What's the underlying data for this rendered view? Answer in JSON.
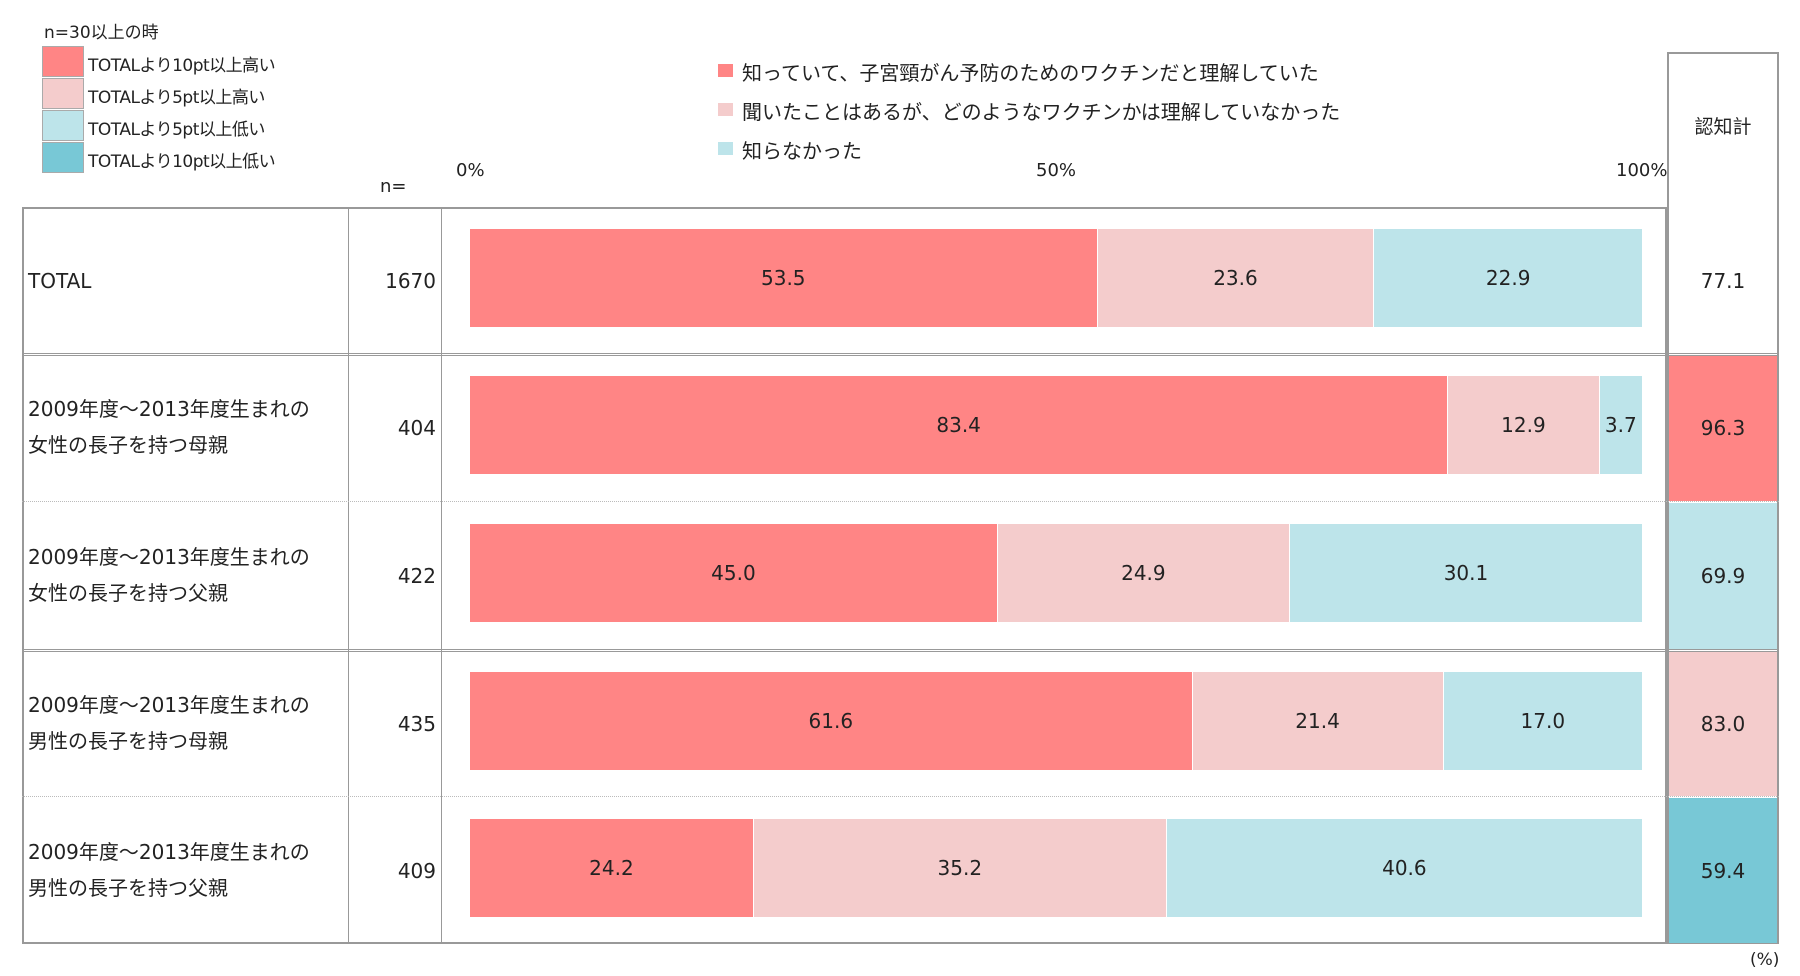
{
  "legend_highlight": {
    "title": "n=30以上の時",
    "items": [
      {
        "label": "TOTALより10pt以上高い",
        "color": "#ff8585"
      },
      {
        "label": "TOTALより5pt以上高い",
        "color": "#f4cccc"
      },
      {
        "label": "TOTALより5pt以上低い",
        "color": "#bde4ea"
      },
      {
        "label": "TOTALより10pt以上低い",
        "color": "#78c8d6"
      }
    ]
  },
  "n_label": "n=",
  "score_header": "認知計",
  "unit": "(%)",
  "chart_data": {
    "type": "bar",
    "orientation": "horizontal",
    "stacked": true,
    "xlim": [
      0,
      100
    ],
    "ticks": [
      "0%",
      "50%",
      "100%"
    ],
    "series": [
      {
        "name": "知っていて、子宮頸がん予防のためのワクチンだと理解していた",
        "color": "#ff8585",
        "values": [
          53.5,
          83.4,
          45.0,
          61.6,
          24.2
        ]
      },
      {
        "name": "聞いたことはあるが、どのようなワクチンかは理解していなかった",
        "color": "#f4cccc",
        "values": [
          23.6,
          12.9,
          24.9,
          21.4,
          35.2
        ]
      },
      {
        "name": "知らなかった",
        "color": "#bde4ea",
        "values": [
          22.9,
          3.7,
          30.1,
          17.0,
          40.6
        ]
      }
    ],
    "categories": [
      {
        "label1": "TOTAL",
        "label2": "",
        "n": "1670",
        "score": "77.1",
        "score_color": "#ffffff"
      },
      {
        "label1": "2009年度～2013年度生まれの",
        "label2": "女性の長子を持つ母親",
        "n": "404",
        "score": "96.3",
        "score_color": "#ff8585"
      },
      {
        "label1": "2009年度～2013年度生まれの",
        "label2": "女性の長子を持つ父親",
        "n": "422",
        "score": "69.9",
        "score_color": "#bde4ea"
      },
      {
        "label1": "2009年度～2013年度生まれの",
        "label2": "男性の長子を持つ母親",
        "n": "435",
        "score": "83.0",
        "score_color": "#f4cccc"
      },
      {
        "label1": "2009年度～2013年度生まれの",
        "label2": "男性の長子を持つ父親",
        "n": "409",
        "score": "59.4",
        "score_color": "#78c8d6"
      }
    ]
  }
}
